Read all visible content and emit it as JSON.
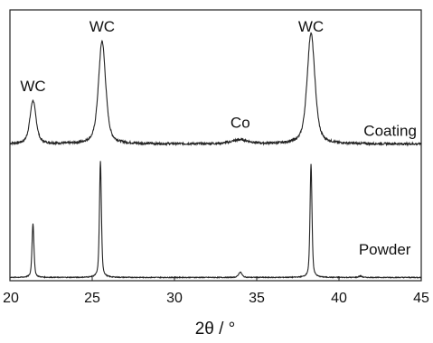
{
  "chart_data": {
    "type": "line",
    "title": "",
    "xlabel": "2θ / °",
    "ylabel": "",
    "xlim": [
      20,
      45
    ],
    "ylim": [
      0,
      1
    ],
    "y_ticks_shown": false,
    "grid": false,
    "x_ticks": [
      20,
      25,
      30,
      35,
      40,
      45
    ],
    "series": [
      {
        "name": "Coating",
        "baseline": 0.505,
        "noise": 0.004,
        "peaks": [
          {
            "x": 21.4,
            "height": 0.16,
            "width": 0.22
          },
          {
            "x": 25.6,
            "height": 0.38,
            "width": 0.26
          },
          {
            "x": 34.0,
            "height": 0.015,
            "width": 0.6
          },
          {
            "x": 38.3,
            "height": 0.41,
            "width": 0.28
          }
        ]
      },
      {
        "name": "Powder",
        "baseline": 0.012,
        "noise": 0.0015,
        "peaks": [
          {
            "x": 21.4,
            "height": 0.2,
            "width": 0.07
          },
          {
            "x": 25.5,
            "height": 0.43,
            "width": 0.07
          },
          {
            "x": 34.0,
            "height": 0.02,
            "width": 0.12
          },
          {
            "x": 38.3,
            "height": 0.42,
            "width": 0.07
          },
          {
            "x": 41.3,
            "height": 0.005,
            "width": 0.12
          }
        ]
      }
    ],
    "annotations": [
      {
        "text": "WC",
        "x": 21.4,
        "y": 0.7
      },
      {
        "text": "WC",
        "x": 25.6,
        "y": 0.92
      },
      {
        "text": "Co",
        "x": 34.0,
        "y": 0.565
      },
      {
        "text": "WC",
        "x": 38.3,
        "y": 0.92
      },
      {
        "text": "Coating",
        "x": 41.5,
        "y": 0.535
      },
      {
        "text": "Powder",
        "x": 41.2,
        "y": 0.097
      }
    ]
  }
}
